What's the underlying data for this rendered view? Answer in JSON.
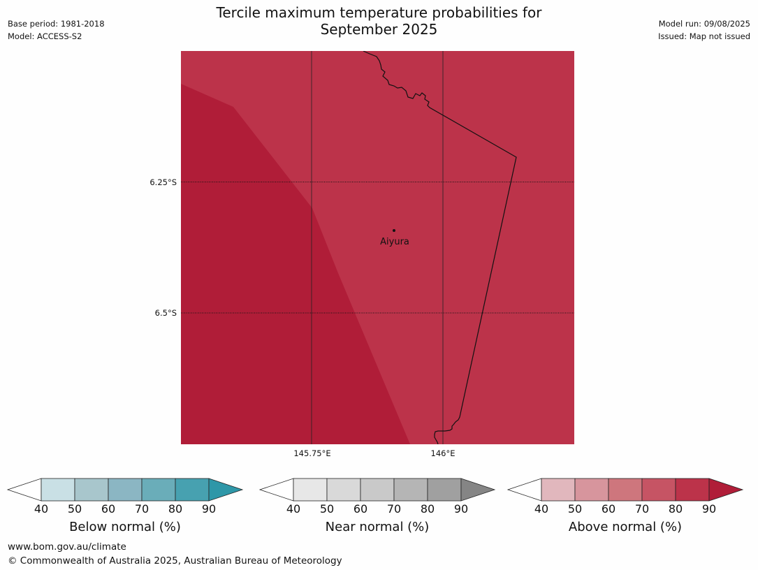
{
  "title_line1": "Tercile maximum temperature probabilities for",
  "title_line2": "September 2025",
  "meta_left": [
    "Base period: 1981-2018",
    "Model: ACCESS-S2"
  ],
  "meta_right": [
    "Model run: 09/08/2025",
    "Issued: Map not issued"
  ],
  "map": {
    "lat_labels": [
      "6.25°S",
      "6.5°S"
    ],
    "lon_labels": [
      "145.75°E",
      "146°E"
    ],
    "place": "Aiyura",
    "regions": [
      {
        "category": "Above normal",
        "band": "80-90",
        "color": "#bc334a"
      },
      {
        "category": "Above normal",
        "band": "90+",
        "color": "#b01d38"
      }
    ]
  },
  "legends": [
    {
      "title": "Below normal (%)",
      "ticks": [
        "40",
        "50",
        "60",
        "70",
        "80",
        "90"
      ],
      "colors": [
        "#ffffff",
        "#c9e0e5",
        "#a8c6cc",
        "#8bb6c3",
        "#6aadb9",
        "#47a1b0",
        "#2e97a8"
      ]
    },
    {
      "title": "Near normal (%)",
      "ticks": [
        "40",
        "50",
        "60",
        "70",
        "80",
        "90"
      ],
      "colors": [
        "#ffffff",
        "#e7e7e7",
        "#d9d9d9",
        "#c9c9c9",
        "#b5b5b5",
        "#a0a0a0",
        "#858585"
      ]
    },
    {
      "title": "Above normal (%)",
      "ticks": [
        "40",
        "50",
        "60",
        "70",
        "80",
        "90"
      ],
      "colors": [
        "#ffffff",
        "#e1b7bd",
        "#d7959d",
        "#ce767d",
        "#c65464",
        "#bc334a",
        "#b01d38"
      ]
    }
  ],
  "footer_url": "www.bom.gov.au/climate",
  "footer_copyright": "© Commonwealth of Australia 2025, Australian Bureau of Meteorology"
}
